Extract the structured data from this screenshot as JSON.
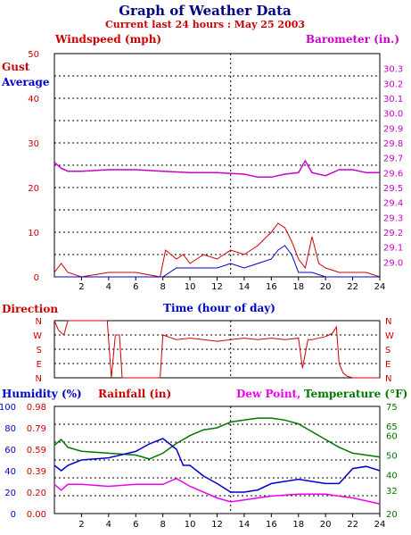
{
  "title": "Graph of Weather Data",
  "subtitle": "Current last 24 hours : May 25 2003",
  "colors": {
    "gust": "#cc0000",
    "average": "#0000cc",
    "barometer": "#cc00cc",
    "direction": "#cc0000",
    "humidity": "#0000cc",
    "rainfall": "#cc0000",
    "dewpoint": "#ee00ee",
    "temperature": "#007700",
    "title": "#000080"
  },
  "chart_data": [
    {
      "type": "line",
      "ylabel": "Windspeed (mph)",
      "y2label": "Barometer (in.)",
      "xlabel": "Time (hour of day)",
      "legend": [
        "Gust",
        "Average"
      ],
      "xlim": [
        0,
        24
      ],
      "xticks": [
        2,
        4,
        6,
        8,
        10,
        12,
        14,
        16,
        18,
        20,
        22,
        24
      ],
      "ylim": [
        0,
        50
      ],
      "yticks": [
        0,
        10,
        20,
        30,
        40,
        50
      ],
      "y2lim": [
        28.9,
        30.4
      ],
      "y2ticks": [
        "29.0",
        "29.1",
        "29.2",
        "29.3",
        "29.4",
        "29.5",
        "29.6",
        "29.7",
        "29.8",
        "29.9",
        "30.0",
        "30.1",
        "30.2",
        "30.3"
      ],
      "grid": true,
      "series": [
        {
          "name": "Gust",
          "axis": "left",
          "x": [
            0,
            0.5,
            1,
            2,
            4,
            6,
            7.8,
            8.2,
            9,
            9.5,
            10,
            11,
            12,
            13,
            14,
            15,
            16,
            16.5,
            17,
            17.5,
            18,
            18.5,
            19,
            19.5,
            20,
            21,
            22,
            23,
            24
          ],
          "y": [
            1,
            3,
            1,
            0,
            1,
            1,
            0,
            6,
            4,
            5,
            3,
            5,
            4,
            6,
            5,
            7,
            10,
            12,
            11,
            8,
            4,
            2,
            9,
            3,
            2,
            1,
            1,
            1,
            0
          ]
        },
        {
          "name": "Average",
          "axis": "left",
          "x": [
            0,
            1,
            8,
            9,
            10,
            11,
            12,
            13,
            14,
            15,
            16,
            16.5,
            17,
            17.5,
            18,
            19,
            20,
            24
          ],
          "y": [
            0,
            0,
            0,
            2,
            2,
            2,
            2,
            3,
            2,
            3,
            4,
            6,
            7,
            5,
            1,
            1,
            0,
            0
          ]
        },
        {
          "name": "Barometer",
          "axis": "right",
          "x": [
            0,
            0.5,
            1,
            2,
            4,
            6,
            8,
            10,
            12,
            14,
            15,
            16,
            17,
            18,
            18.5,
            19,
            20,
            21,
            22,
            23,
            24
          ],
          "y": [
            29.67,
            29.63,
            29.61,
            29.61,
            29.62,
            29.62,
            29.61,
            29.6,
            29.6,
            29.59,
            29.57,
            29.57,
            29.59,
            29.6,
            29.68,
            29.6,
            29.58,
            29.62,
            29.62,
            29.6,
            29.6
          ]
        }
      ]
    },
    {
      "type": "line",
      "ylabel": "Direction",
      "xlim": [
        0,
        24
      ],
      "yticks": [
        "N",
        "W",
        "S",
        "E",
        "N"
      ],
      "ylim": [
        0,
        360
      ],
      "grid": true,
      "series": [
        {
          "name": "Direction",
          "x": [
            0,
            0.3,
            0.7,
            1,
            3,
            3.9,
            4.2,
            4.5,
            4.8,
            5,
            7.8,
            8,
            9,
            10,
            11,
            12,
            13,
            14,
            15,
            16,
            17,
            18,
            18.3,
            18.7,
            19,
            20,
            20.5,
            20.8,
            21,
            21.3,
            21.6,
            22,
            24
          ],
          "y": [
            360,
            300,
            270,
            360,
            360,
            360,
            0,
            270,
            270,
            0,
            0,
            270,
            240,
            250,
            240,
            230,
            240,
            250,
            240,
            250,
            240,
            250,
            60,
            240,
            240,
            260,
            280,
            320,
            90,
            30,
            10,
            0,
            0
          ]
        }
      ]
    },
    {
      "type": "line",
      "ylabel": "Humidity (%)",
      "y2label": "Rainfall (in)",
      "y3label": "Dew Point,",
      "y4label": "Temperature (°F)",
      "xlim": [
        0,
        24
      ],
      "xticks": [
        2,
        4,
        6,
        8,
        10,
        12,
        14,
        16,
        18,
        20,
        22,
        24
      ],
      "humidity_ticks": [
        0,
        20,
        40,
        60,
        80,
        100
      ],
      "rainfall_ticks": [
        "0.00",
        "0.20",
        "0.39",
        "0.59",
        "0.79",
        "0.98"
      ],
      "temperature_ticks": [
        20,
        32,
        40,
        50,
        60,
        65,
        75
      ],
      "temperature_ylim": [
        20,
        75
      ],
      "grid": true,
      "series": [
        {
          "name": "Humidity",
          "unit": "%",
          "x": [
            0,
            0.5,
            1,
            2,
            4,
            6,
            7,
            8,
            9,
            9.5,
            10,
            11,
            12,
            13,
            14,
            15,
            16,
            18,
            20,
            21,
            22,
            23,
            24
          ],
          "y": [
            45,
            40,
            45,
            50,
            52,
            58,
            65,
            70,
            60,
            45,
            45,
            35,
            28,
            20,
            20,
            22,
            28,
            32,
            28,
            28,
            42,
            44,
            40
          ]
        },
        {
          "name": "Dew Point",
          "unit": "F",
          "x": [
            0,
            0.5,
            1,
            2,
            4,
            6,
            7,
            8,
            9,
            9.5,
            10,
            11,
            12,
            13,
            14,
            15,
            16,
            18,
            20,
            22,
            24
          ],
          "y": [
            35,
            32,
            35,
            35,
            34,
            35,
            35,
            35,
            38,
            36,
            34,
            31,
            28,
            26,
            27,
            28,
            29,
            30,
            30,
            28,
            25
          ]
        },
        {
          "name": "Temperature",
          "unit": "F",
          "x": [
            0,
            0.5,
            1,
            2,
            4,
            6,
            7,
            8,
            9,
            10,
            11,
            12,
            13,
            14,
            15,
            16,
            17,
            18,
            19,
            20,
            21,
            22,
            23,
            24
          ],
          "y": [
            55,
            58,
            54,
            52,
            51,
            50,
            48,
            51,
            56,
            60,
            63,
            64,
            67,
            68,
            69,
            69,
            68,
            66,
            62,
            58,
            54,
            51,
            50,
            49
          ]
        }
      ]
    }
  ]
}
